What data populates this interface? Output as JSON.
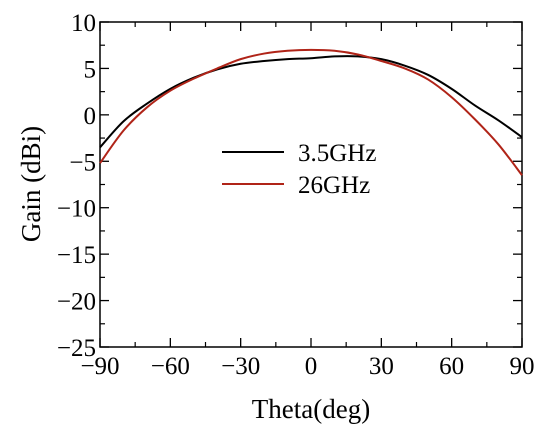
{
  "chart_data": {
    "type": "line",
    "xlabel": "Theta(deg)",
    "ylabel": "Gain (dBi)",
    "xlim": [
      -90,
      90
    ],
    "ylim": [
      -25,
      10
    ],
    "xticks": [
      -90,
      -60,
      -30,
      0,
      30,
      60,
      90
    ],
    "yticks": [
      -25,
      -20,
      -15,
      -10,
      -5,
      0,
      5,
      10
    ],
    "x_minor_step": 15,
    "y_minor_step": 2.5,
    "grid": false,
    "legend_position": "center",
    "series": [
      {
        "name": "3.5GHz",
        "color": "#000000",
        "x": [
          -90,
          -80,
          -70,
          -60,
          -50,
          -40,
          -30,
          -20,
          -10,
          0,
          10,
          20,
          30,
          40,
          50,
          60,
          70,
          80,
          90
        ],
        "y": [
          -3.5,
          -0.7,
          1.2,
          2.8,
          4.0,
          4.9,
          5.5,
          5.8,
          6.0,
          6.1,
          6.3,
          6.3,
          6.0,
          5.3,
          4.3,
          2.8,
          1.0,
          -0.6,
          -2.4
        ]
      },
      {
        "name": "26GHz",
        "color": "#b02418",
        "x": [
          -90,
          -80,
          -70,
          -60,
          -50,
          -40,
          -30,
          -20,
          -10,
          0,
          10,
          20,
          30,
          40,
          50,
          60,
          70,
          80,
          90
        ],
        "y": [
          -5.2,
          -1.7,
          0.8,
          2.6,
          3.9,
          5.0,
          6.0,
          6.6,
          6.9,
          7.0,
          6.9,
          6.5,
          5.8,
          5.0,
          3.8,
          1.9,
          -0.5,
          -3.2,
          -6.5
        ]
      }
    ]
  }
}
